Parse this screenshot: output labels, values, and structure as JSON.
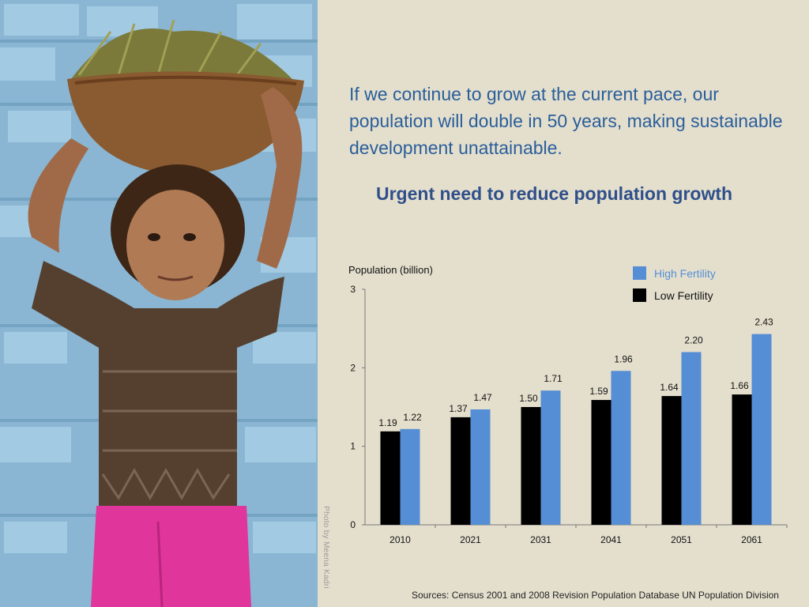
{
  "headline": "If we continue to grow at the current pace, our population will double in 50 years, making sustainable development unattainable.",
  "subheadline": "Urgent need to reduce population growth",
  "photo_credit": "Photo by Meena Kadri",
  "sources": "Sources: Census 2001 and 2008 Revision Population Database UN Population Division",
  "colors": {
    "high": "#558ed5",
    "low": "#000000",
    "headline": "#2a5e9a",
    "subhead": "#2f4f8a"
  },
  "chart_data": {
    "type": "bar",
    "ylabel": "Population (billion)",
    "categories": [
      "2010",
      "2021",
      "2031",
      "2041",
      "2051",
      "2061"
    ],
    "series": [
      {
        "name": "Low Fertility",
        "values": [
          1.19,
          1.37,
          1.5,
          1.59,
          1.64,
          1.66
        ],
        "color": "#000000"
      },
      {
        "name": "High Fertility",
        "values": [
          1.22,
          1.47,
          1.71,
          1.96,
          2.2,
          2.43
        ],
        "color": "#558ed5"
      }
    ],
    "value_labels": {
      "Low Fertility": [
        "1.19",
        "1.37",
        "1.50",
        "1.59",
        "1.64",
        "1.66"
      ],
      "High Fertility": [
        "1.22",
        "1.47",
        "1.71",
        "1.96",
        "2.20",
        "2.43"
      ]
    },
    "ylim": [
      0,
      3
    ],
    "yticks": [
      "0",
      "1",
      "2",
      "3"
    ],
    "legend": {
      "position": "top-right",
      "order": [
        "High Fertility",
        "Low Fertility"
      ]
    },
    "grid": false
  }
}
